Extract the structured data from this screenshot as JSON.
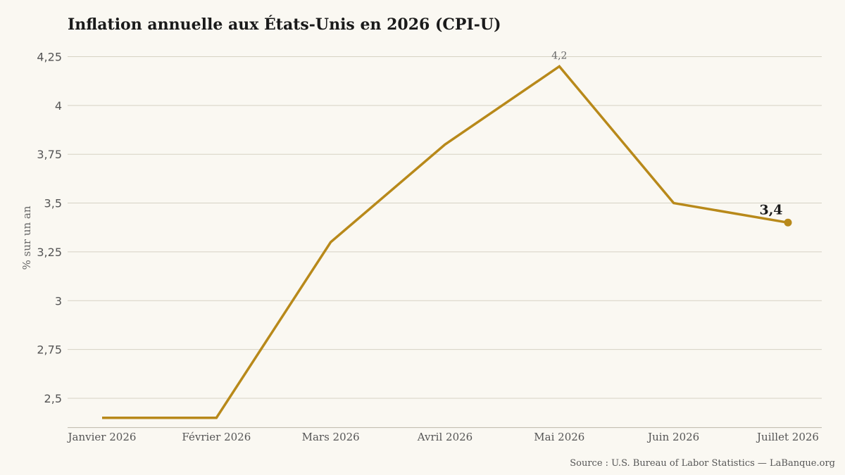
{
  "chart_data": {
    "type": "line",
    "title": "Inflation annuelle aux États-Unis en 2026 (CPI-U)",
    "ylabel": "% sur un an",
    "xlabel": "",
    "categories": [
      "Janvier 2026",
      "Février 2026",
      "Mars 2026",
      "Avril 2026",
      "Mai 2026",
      "Juin 2026",
      "Juillet 2026"
    ],
    "series": [
      {
        "values": [
          2.4,
          2.4,
          3.3,
          3.8,
          4.2,
          3.5,
          3.4
        ]
      }
    ],
    "ylim": [
      2.35,
      4.3
    ],
    "yticks": [
      2.5,
      2.75,
      3,
      3.25,
      3.5,
      3.75,
      4,
      4.25
    ],
    "ytick_labels": [
      "2,5",
      "2,75",
      "3",
      "3,25",
      "3,5",
      "3,75",
      "4",
      "4,25"
    ],
    "annotations": [
      {
        "index": 4,
        "text": "4,2"
      },
      {
        "index": 6,
        "text": "3,4"
      }
    ],
    "grid": true,
    "colors": {
      "line": "#b8891a",
      "grid": "#d6d2c4",
      "axis": "#bdb8aa",
      "background": "#faf8f2"
    }
  },
  "source": "Source : U.S. Bureau of Labor Statistics — LaBanque.org"
}
